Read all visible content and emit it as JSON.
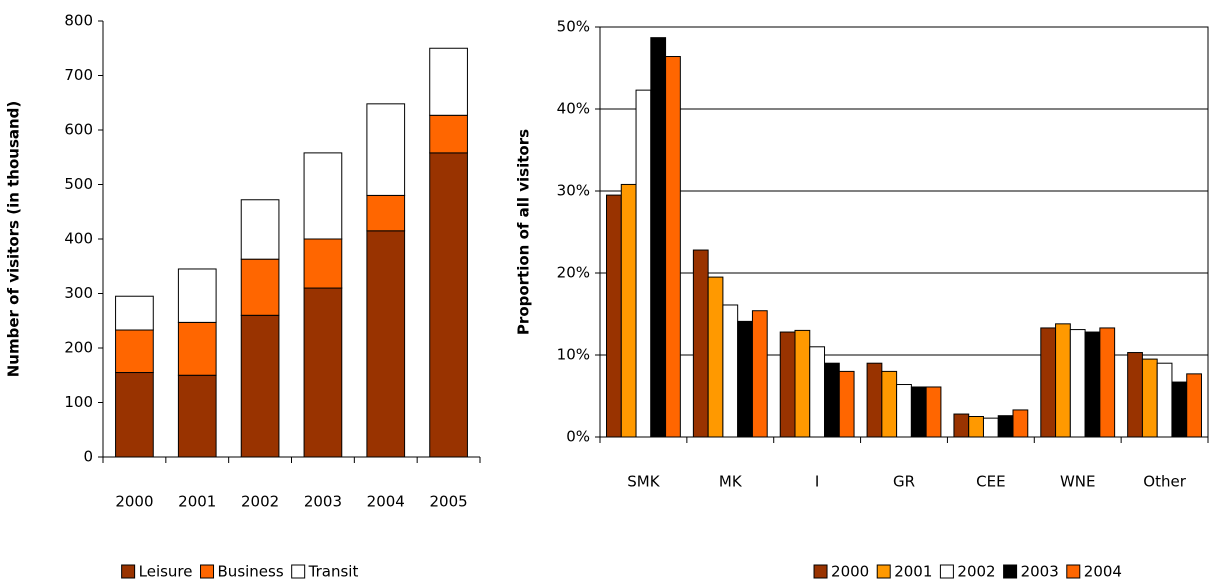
{
  "chart_data": [
    {
      "type": "bar",
      "stacked": true,
      "y_label": "Number of visitors (in thousand)",
      "categories": [
        "2000",
        "2001",
        "2002",
        "2003",
        "2004",
        "2005"
      ],
      "series": [
        {
          "name": "Leisure",
          "color": "#993300",
          "values": [
            155,
            150,
            260,
            310,
            415,
            558
          ]
        },
        {
          "name": "Business",
          "color": "#ff6600",
          "values": [
            78,
            97,
            103,
            90,
            65,
            69
          ]
        },
        {
          "name": "Transit",
          "color": "#ffffff",
          "values": [
            62,
            98,
            109,
            158,
            168,
            123
          ]
        }
      ],
      "ylim": [
        0,
        800
      ],
      "yticks": [
        0,
        100,
        200,
        300,
        400,
        500,
        600,
        700,
        800
      ],
      "grid": false,
      "legend": "bottom"
    },
    {
      "type": "bar",
      "stacked": false,
      "y_label": "Proportion of all visitors",
      "categories": [
        "SMK",
        "MK",
        "I",
        "GR",
        "CEE",
        "WNE",
        "Other"
      ],
      "series": [
        {
          "name": "2000",
          "color": "#993300",
          "values": [
            29.5,
            22.8,
            12.8,
            9.0,
            2.8,
            13.3,
            10.3
          ]
        },
        {
          "name": "2001",
          "color": "#ff9900",
          "values": [
            30.8,
            19.5,
            13.0,
            8.0,
            2.5,
            13.8,
            9.5
          ]
        },
        {
          "name": "2002",
          "color": "#ffffff",
          "values": [
            42.3,
            16.1,
            11.0,
            6.4,
            2.3,
            13.1,
            9.0
          ]
        },
        {
          "name": "2003",
          "color": "#000000",
          "values": [
            48.7,
            14.1,
            9.0,
            6.1,
            2.6,
            12.8,
            6.7
          ]
        },
        {
          "name": "2004",
          "color": "#ff6600",
          "values": [
            46.4,
            15.4,
            8.0,
            6.1,
            3.3,
            13.3,
            7.7
          ]
        }
      ],
      "ylim": [
        0,
        50
      ],
      "yticks": [
        {
          "value": 0,
          "label": "0%"
        },
        {
          "value": 10,
          "label": "10%"
        },
        {
          "value": 20,
          "label": "20%"
        },
        {
          "value": 30,
          "label": "30%"
        },
        {
          "value": 40,
          "label": "40%"
        },
        {
          "value": 50,
          "label": "50%"
        }
      ],
      "grid": true,
      "legend": "bottom"
    }
  ]
}
